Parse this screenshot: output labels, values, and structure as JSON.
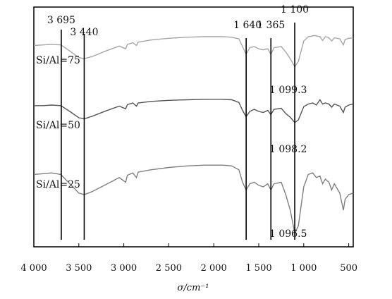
{
  "chart_data": {
    "type": "line",
    "xlabel": "σ/cm⁻¹",
    "xlim": [
      4000,
      450
    ],
    "x_reversed": true,
    "grid": false,
    "legend": "none",
    "xticks": [
      {
        "value": 4000,
        "label": "4 000"
      },
      {
        "value": 3500,
        "label": "3 500"
      },
      {
        "value": 3000,
        "label": "3 000"
      },
      {
        "value": 2500,
        "label": "2 500"
      },
      {
        "value": 2000,
        "label": "2 000"
      },
      {
        "value": 1500,
        "label": "1 500"
      },
      {
        "value": 1000,
        "label": "1 000"
      },
      {
        "value": 500,
        "label": "500"
      }
    ],
    "reference_lines": [
      {
        "x": 3695,
        "label": "3 695"
      },
      {
        "x": 3440,
        "label": "3 440"
      },
      {
        "x": 1640,
        "label": "1 640"
      },
      {
        "x": 1365,
        "label": "1 365"
      },
      {
        "x": 1100,
        "label": "1 100"
      }
    ],
    "annotations": [
      {
        "text": "1 099.3",
        "x": 1099.3,
        "series": "Si/Al=75"
      },
      {
        "text": "1 098.2",
        "x": 1098.2,
        "series": "Si/Al=50"
      },
      {
        "text": "1 096.5",
        "x": 1096.5,
        "series": "Si/Al=25"
      }
    ],
    "series": [
      {
        "name": "Si/Al=75",
        "color": "#a6a6a6",
        "points": [
          [
            4000,
            0.84
          ],
          [
            3900,
            0.85
          ],
          [
            3800,
            0.86
          ],
          [
            3700,
            0.85
          ],
          [
            3600,
            0.74
          ],
          [
            3500,
            0.62
          ],
          [
            3440,
            0.6
          ],
          [
            3350,
            0.64
          ],
          [
            3200,
            0.74
          ],
          [
            3050,
            0.83
          ],
          [
            2980,
            0.78
          ],
          [
            2960,
            0.86
          ],
          [
            2900,
            0.89
          ],
          [
            2860,
            0.84
          ],
          [
            2840,
            0.9
          ],
          [
            2700,
            0.94
          ],
          [
            2500,
            0.97
          ],
          [
            2300,
            0.99
          ],
          [
            2100,
            1.0
          ],
          [
            1900,
            1.0
          ],
          [
            1800,
            0.99
          ],
          [
            1720,
            0.96
          ],
          [
            1680,
            0.82
          ],
          [
            1640,
            0.68
          ],
          [
            1600,
            0.8
          ],
          [
            1550,
            0.82
          ],
          [
            1500,
            0.78
          ],
          [
            1450,
            0.76
          ],
          [
            1400,
            0.78
          ],
          [
            1365,
            0.68
          ],
          [
            1330,
            0.8
          ],
          [
            1250,
            0.82
          ],
          [
            1200,
            0.72
          ],
          [
            1150,
            0.6
          ],
          [
            1100,
            0.45
          ],
          [
            1060,
            0.55
          ],
          [
            1000,
            0.92
          ],
          [
            950,
            1.0
          ],
          [
            880,
            1.02
          ],
          [
            820,
            1.0
          ],
          [
            790,
            0.93
          ],
          [
            760,
            1.0
          ],
          [
            720,
            0.98
          ],
          [
            690,
            0.92
          ],
          [
            660,
            0.98
          ],
          [
            600,
            0.96
          ],
          [
            560,
            0.85
          ],
          [
            540,
            0.95
          ],
          [
            500,
            0.97
          ],
          [
            450,
            0.98
          ]
        ]
      },
      {
        "name": "Si/Al=50",
        "color": "#555555",
        "points": [
          [
            4000,
            0.87
          ],
          [
            3900,
            0.87
          ],
          [
            3800,
            0.88
          ],
          [
            3700,
            0.87
          ],
          [
            3600,
            0.76
          ],
          [
            3500,
            0.64
          ],
          [
            3440,
            0.62
          ],
          [
            3350,
            0.67
          ],
          [
            3200,
            0.77
          ],
          [
            3050,
            0.86
          ],
          [
            2980,
            0.81
          ],
          [
            2960,
            0.89
          ],
          [
            2900,
            0.92
          ],
          [
            2860,
            0.86
          ],
          [
            2840,
            0.92
          ],
          [
            2700,
            0.95
          ],
          [
            2500,
            0.97
          ],
          [
            2300,
            0.98
          ],
          [
            2100,
            0.99
          ],
          [
            1900,
            0.99
          ],
          [
            1800,
            0.98
          ],
          [
            1720,
            0.93
          ],
          [
            1680,
            0.78
          ],
          [
            1640,
            0.66
          ],
          [
            1600,
            0.76
          ],
          [
            1550,
            0.8
          ],
          [
            1500,
            0.76
          ],
          [
            1450,
            0.74
          ],
          [
            1400,
            0.78
          ],
          [
            1365,
            0.7
          ],
          [
            1330,
            0.8
          ],
          [
            1250,
            0.82
          ],
          [
            1200,
            0.72
          ],
          [
            1150,
            0.65
          ],
          [
            1100,
            0.55
          ],
          [
            1060,
            0.6
          ],
          [
            1000,
            0.85
          ],
          [
            950,
            0.9
          ],
          [
            900,
            0.92
          ],
          [
            860,
            0.88
          ],
          [
            820,
            0.98
          ],
          [
            790,
            0.9
          ],
          [
            760,
            0.92
          ],
          [
            720,
            0.9
          ],
          [
            690,
            0.84
          ],
          [
            660,
            0.9
          ],
          [
            600,
            0.86
          ],
          [
            560,
            0.74
          ],
          [
            540,
            0.84
          ],
          [
            500,
            0.88
          ],
          [
            450,
            0.9
          ]
        ]
      },
      {
        "name": "Si/Al=25",
        "color": "#7f7f7f",
        "points": [
          [
            4000,
            0.86
          ],
          [
            3900,
            0.87
          ],
          [
            3800,
            0.88
          ],
          [
            3700,
            0.86
          ],
          [
            3600,
            0.74
          ],
          [
            3500,
            0.62
          ],
          [
            3440,
            0.6
          ],
          [
            3350,
            0.64
          ],
          [
            3200,
            0.73
          ],
          [
            3050,
            0.82
          ],
          [
            2980,
            0.76
          ],
          [
            2960,
            0.85
          ],
          [
            2900,
            0.88
          ],
          [
            2860,
            0.82
          ],
          [
            2840,
            0.89
          ],
          [
            2700,
            0.92
          ],
          [
            2500,
            0.95
          ],
          [
            2300,
            0.97
          ],
          [
            2100,
            0.98
          ],
          [
            1900,
            0.98
          ],
          [
            1800,
            0.97
          ],
          [
            1720,
            0.92
          ],
          [
            1680,
            0.76
          ],
          [
            1640,
            0.66
          ],
          [
            1600,
            0.74
          ],
          [
            1550,
            0.76
          ],
          [
            1500,
            0.72
          ],
          [
            1450,
            0.7
          ],
          [
            1400,
            0.74
          ],
          [
            1365,
            0.66
          ],
          [
            1330,
            0.74
          ],
          [
            1250,
            0.76
          ],
          [
            1200,
            0.6
          ],
          [
            1150,
            0.4
          ],
          [
            1100,
            0.1
          ],
          [
            1060,
            0.2
          ],
          [
            1000,
            0.7
          ],
          [
            950,
            0.86
          ],
          [
            900,
            0.88
          ],
          [
            860,
            0.82
          ],
          [
            820,
            0.84
          ],
          [
            790,
            0.74
          ],
          [
            760,
            0.8
          ],
          [
            720,
            0.76
          ],
          [
            690,
            0.66
          ],
          [
            660,
            0.74
          ],
          [
            600,
            0.62
          ],
          [
            560,
            0.4
          ],
          [
            540,
            0.54
          ],
          [
            500,
            0.6
          ],
          [
            450,
            0.62
          ]
        ]
      }
    ]
  }
}
